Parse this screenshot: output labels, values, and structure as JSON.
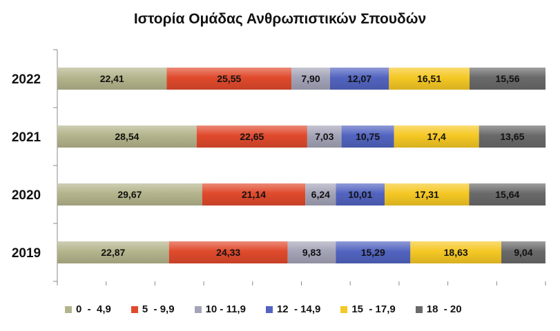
{
  "chart_data": {
    "type": "bar",
    "orientation": "horizontal",
    "stacked": true,
    "title": "Ιστορία Ομάδας Ανθρωπιστικών Σπουδών",
    "categories": [
      "2022",
      "2021",
      "2020",
      "2019"
    ],
    "series": [
      {
        "name": "0  -  4,9",
        "color": "#b4b48c",
        "values": [
          22.41,
          28.54,
          29.67,
          22.87
        ],
        "labels": [
          "22,41",
          "28,54",
          "29,67",
          "22,87"
        ]
      },
      {
        "name": "5  - 9,9",
        "color": "#e04a2c",
        "values": [
          25.55,
          22.65,
          21.14,
          24.33
        ],
        "labels": [
          "25,55",
          "22,65",
          "21,14",
          "24,33"
        ]
      },
      {
        "name": "10 - 11,9",
        "color": "#a4a4b8",
        "values": [
          7.9,
          7.03,
          6.24,
          9.83
        ],
        "labels": [
          "7,90",
          "7,03",
          "6,24",
          "9,83"
        ]
      },
      {
        "name": "12  - 14,9",
        "color": "#5264c0",
        "values": [
          12.07,
          10.75,
          10.01,
          15.29
        ],
        "labels": [
          "12,07",
          "10,75",
          "10,01",
          "15,29"
        ]
      },
      {
        "name": "15  - 17,9",
        "color": "#f5c824",
        "values": [
          16.51,
          17.4,
          17.31,
          18.63
        ],
        "labels": [
          "16,51",
          "17,4",
          "17,31",
          "18,63"
        ]
      },
      {
        "name": "18  - 20",
        "color": "#6a6a6a",
        "values": [
          15.56,
          13.65,
          15.64,
          9.04
        ],
        "labels": [
          "15,56",
          "13,65",
          "15,64",
          "9,04"
        ]
      }
    ],
    "xlim": [
      0,
      100
    ],
    "grid": false,
    "legend_position": "bottom"
  }
}
